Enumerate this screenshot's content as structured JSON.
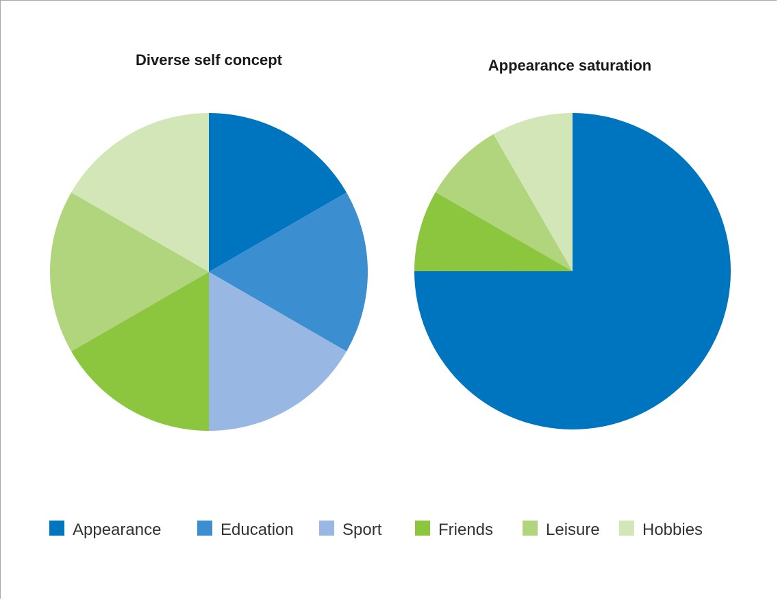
{
  "colors": {
    "Appearance": "#0075bf",
    "Education": "#3b8fd0",
    "Sport": "#98b8e3",
    "Friends": "#8cc63f",
    "Leisure": "#b0d57c",
    "Hobbies": "#d3e6b7"
  },
  "legend": [
    "Appearance",
    "Education",
    "Sport",
    "Friends",
    "Leisure",
    "Hobbies"
  ],
  "chart_data": [
    {
      "type": "pie",
      "title": "Diverse self concept",
      "categories": [
        "Appearance",
        "Education",
        "Sport",
        "Friends",
        "Leisure",
        "Hobbies"
      ],
      "values": [
        16.67,
        16.67,
        16.67,
        16.67,
        16.67,
        16.67
      ]
    },
    {
      "type": "pie",
      "title": "Appearance saturation",
      "categories": [
        "Appearance",
        "Friends",
        "Leisure",
        "Hobbies"
      ],
      "values": [
        75,
        8.33,
        8.33,
        8.33
      ]
    }
  ]
}
